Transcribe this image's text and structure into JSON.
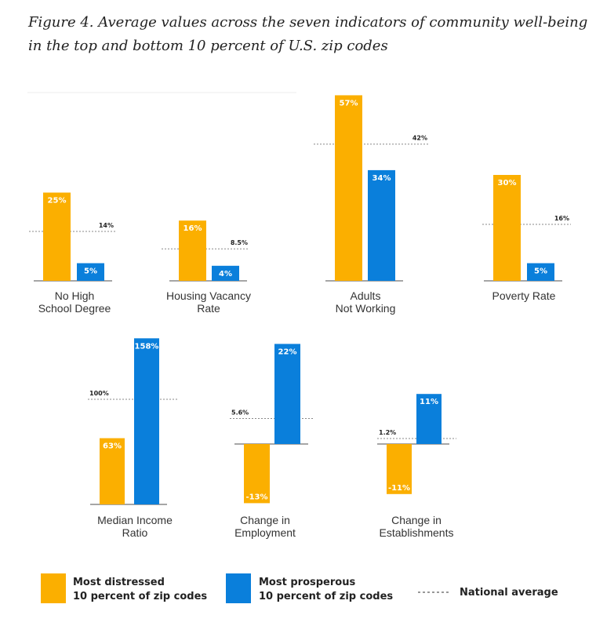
{
  "title": "Figure 4. Average values across the seven indicators of community well-being in the top and bottom 10 percent of U.S. zip codes",
  "chart_data": {
    "type": "bar",
    "colors": {
      "distressed": "#FBAF00",
      "prosperous": "#0A7FDB",
      "national_average": "#888888"
    },
    "legend": {
      "placement": "bottom",
      "distressed": [
        "Most distressed",
        "10 percent of zip codes"
      ],
      "prosperous": [
        "Most prosperous",
        "10 percent of zip codes"
      ],
      "national_average": "National average"
    },
    "panels": [
      {
        "category": [
          "No High",
          "School Degree"
        ],
        "distressed": 25,
        "distressed_label": "25%",
        "prosperous": 5,
        "prosperous_label": "5%",
        "national_average": 14,
        "national_average_label": "14%"
      },
      {
        "category": [
          "Housing Vacancy",
          "Rate"
        ],
        "distressed": 16,
        "distressed_label": "16%",
        "prosperous": 4,
        "prosperous_label": "4%",
        "national_average": 8.5,
        "national_average_label": "8.5%"
      },
      {
        "category": [
          "Adults",
          "Not Working"
        ],
        "distressed": 57,
        "distressed_label": "57%",
        "prosperous": 34,
        "prosperous_label": "34%",
        "national_average": 42,
        "national_average_label": "42%"
      },
      {
        "category": [
          "Poverty Rate"
        ],
        "distressed": 30,
        "distressed_label": "30%",
        "prosperous": 5,
        "prosperous_label": "5%",
        "national_average": 16,
        "national_average_label": "16%"
      },
      {
        "category": [
          "Median Income",
          "Ratio"
        ],
        "distressed": 63,
        "distressed_label": "63%",
        "prosperous": 158,
        "prosperous_label": "158%",
        "national_average": 100,
        "national_average_label": "100%"
      },
      {
        "category": [
          "Change in",
          "Employment"
        ],
        "distressed": -13,
        "distressed_label": "-13%",
        "prosperous": 22,
        "prosperous_label": "22%",
        "national_average": 5.6,
        "national_average_label": "5.6%"
      },
      {
        "category": [
          "Change in",
          "Establishments"
        ],
        "distressed": -11,
        "distressed_label": "-11%",
        "prosperous": 11,
        "prosperous_label": "11%",
        "national_average": 1.2,
        "national_average_label": "1.2%"
      }
    ]
  }
}
